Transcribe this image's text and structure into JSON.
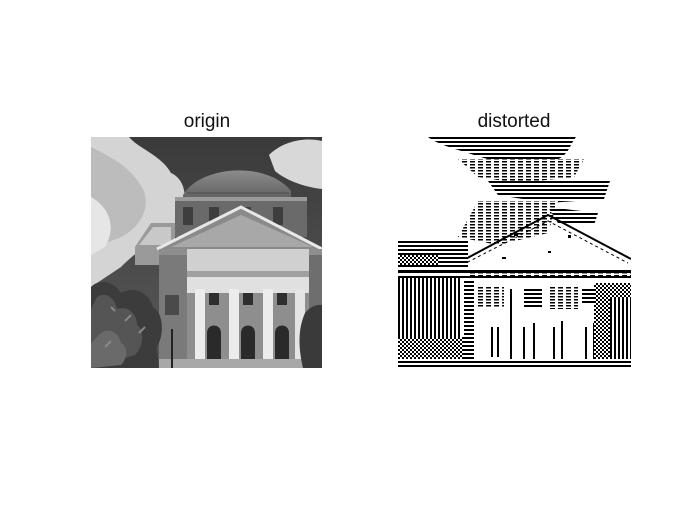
{
  "figure": {
    "panels": [
      {
        "title": "origin"
      },
      {
        "title": "distorted"
      }
    ]
  }
}
